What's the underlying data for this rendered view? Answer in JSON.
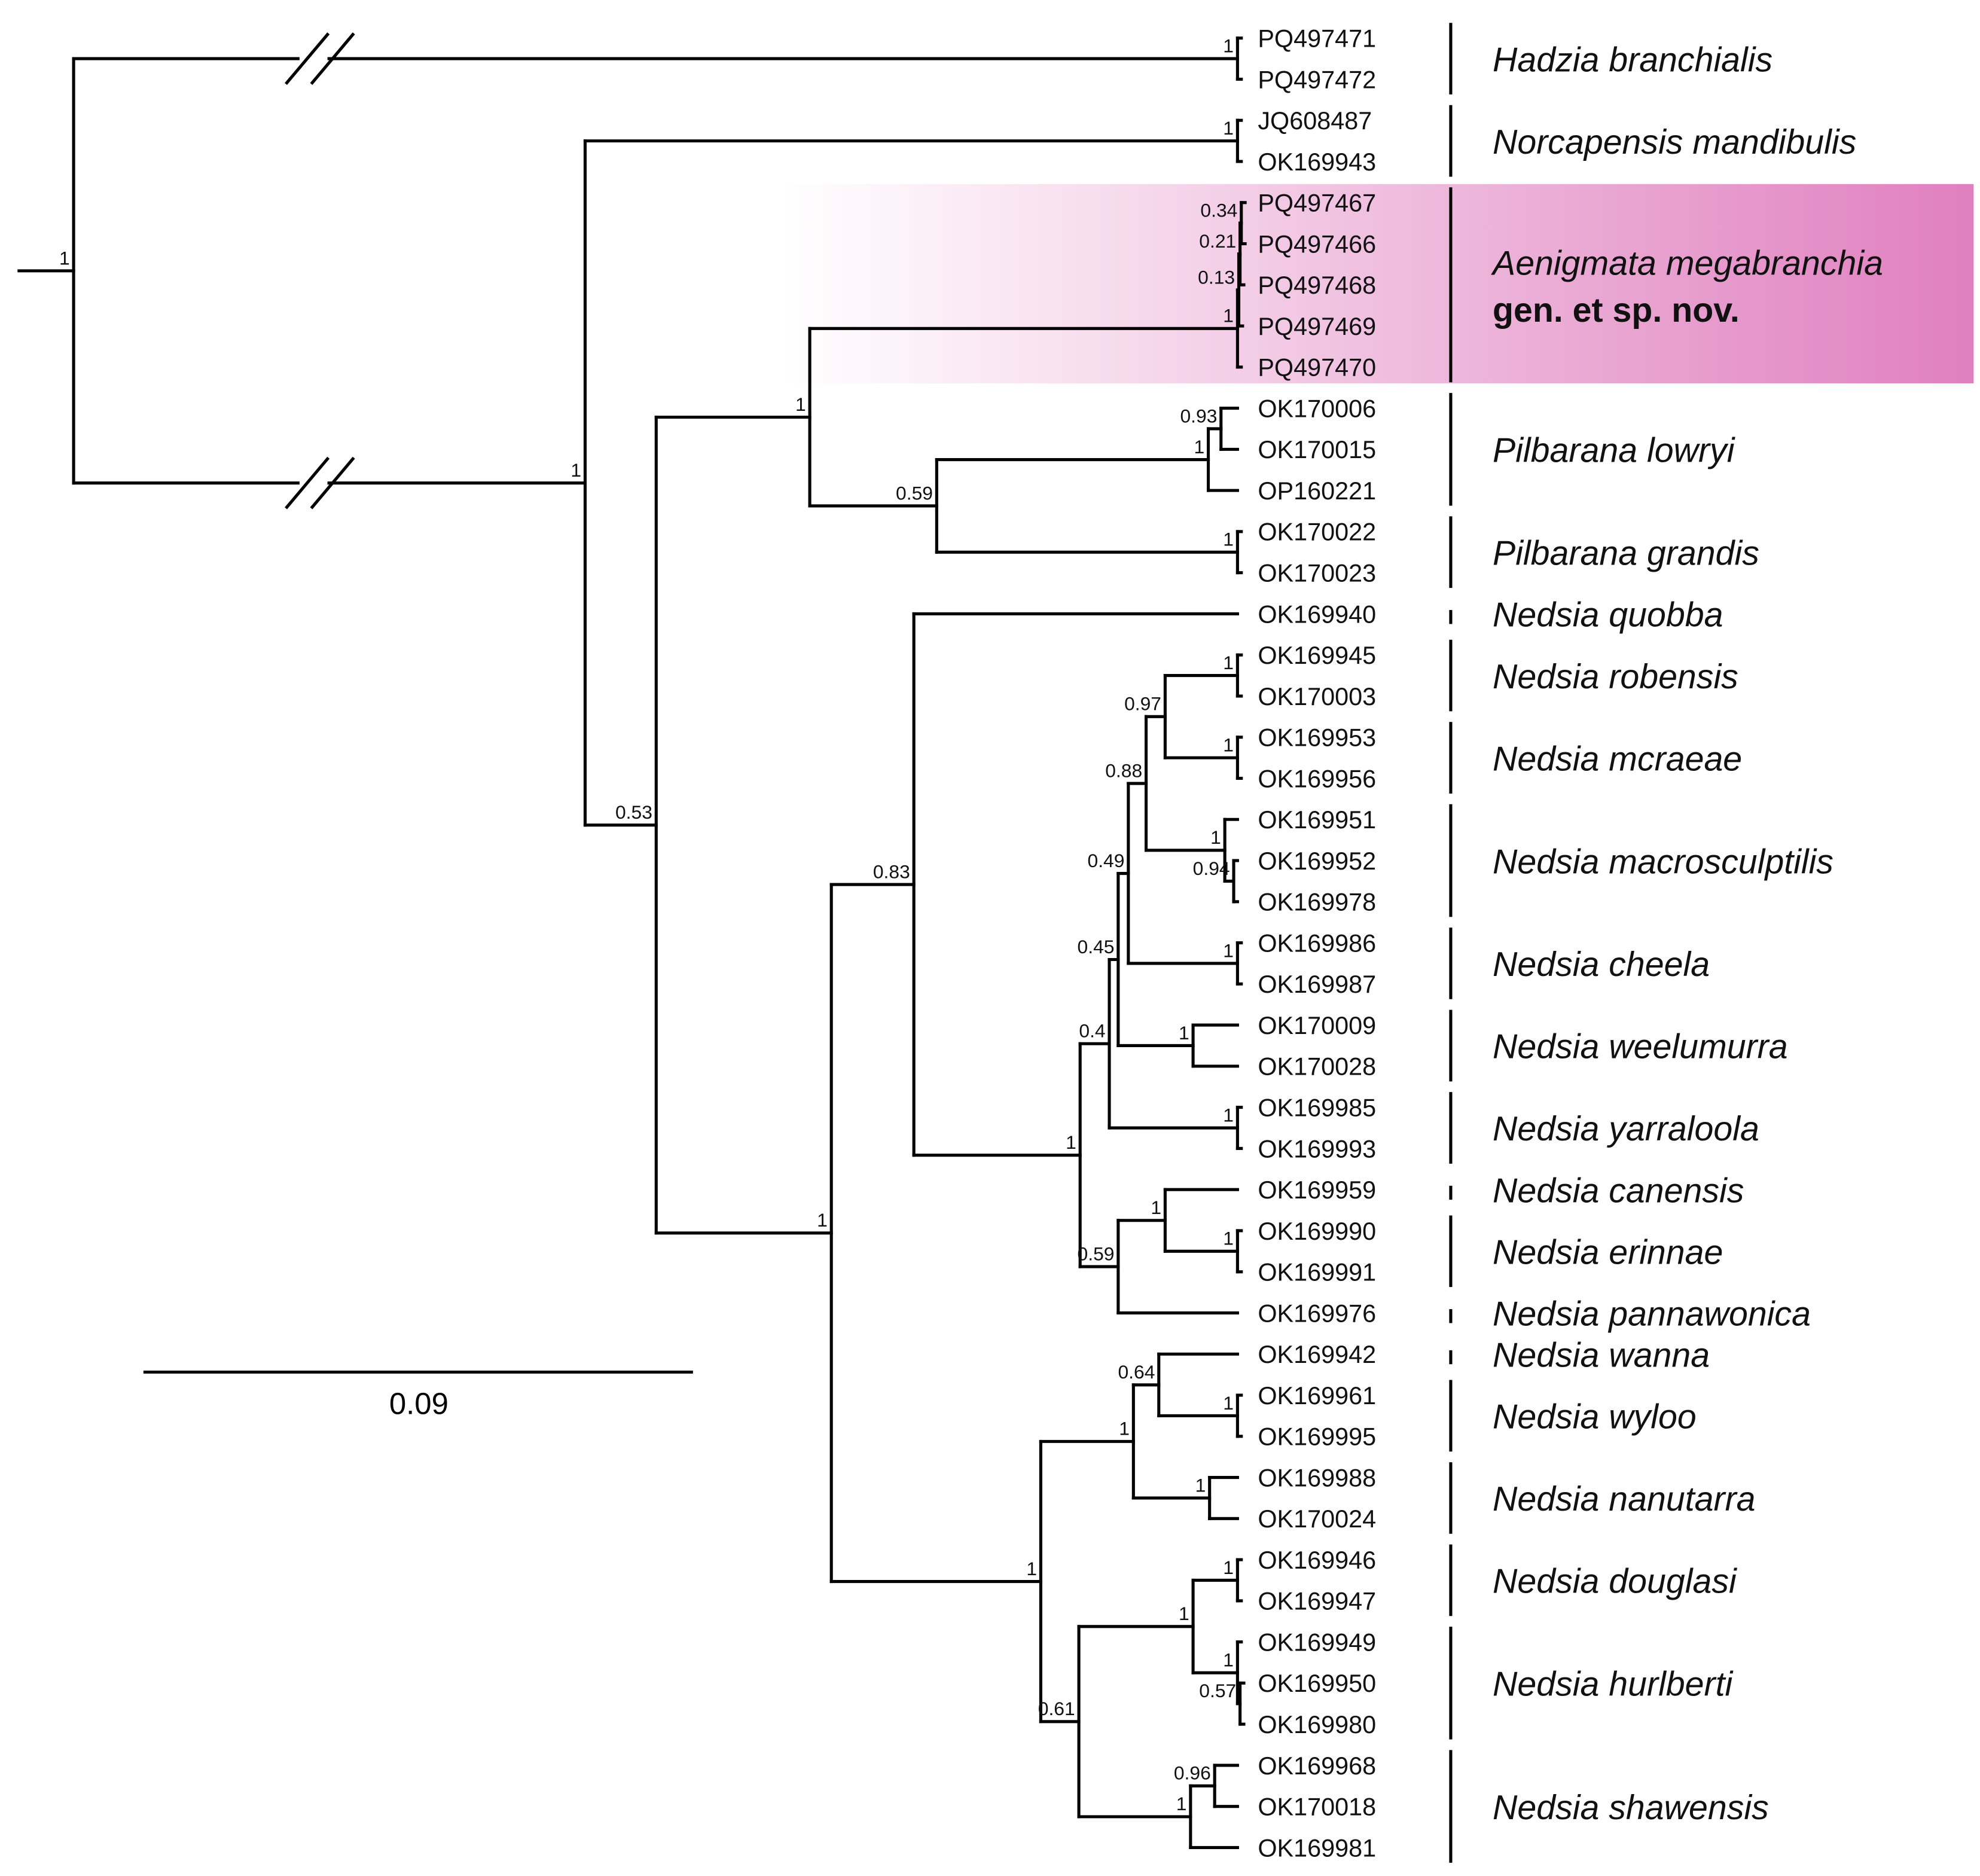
{
  "colors": {
    "highlight": "#e07fbf",
    "branch": "#000000"
  },
  "highlight_species": "Aenigmata megabranchia",
  "scale_bar": {
    "label": "0.09"
  },
  "tree": {
    "support": "1",
    "children": [
      {
        "support": "1",
        "children": [
          {
            "leaf": "PQ497471"
          },
          {
            "leaf": "PQ497472"
          }
        ]
      },
      {
        "support": "1",
        "children": [
          {
            "support": "1",
            "children": [
              {
                "leaf": "JQ608487"
              },
              {
                "leaf": "OK169943"
              }
            ]
          },
          {
            "support": "0.53",
            "children": [
              {
                "support": "1",
                "children": [
                  {
                    "support": "1",
                    "children": [
                      {
                        "support": "0.13",
                        "children": [
                          {
                            "support": "0.21",
                            "children": [
                              {
                                "support": "0.34",
                                "children": [
                                  {
                                    "leaf": "PQ497467"
                                  },
                                  {
                                    "leaf": "PQ497466"
                                  }
                                ]
                              },
                              {
                                "leaf": "PQ497468"
                              }
                            ]
                          },
                          {
                            "leaf": "PQ497469"
                          }
                        ]
                      },
                      {
                        "leaf": "PQ497470"
                      }
                    ]
                  },
                  {
                    "support": "0.59",
                    "children": [
                      {
                        "support": "1",
                        "children": [
                          {
                            "support": "0.93",
                            "children": [
                              {
                                "leaf": "OK170006"
                              },
                              {
                                "leaf": "OK170015"
                              }
                            ]
                          },
                          {
                            "leaf": "OP160221"
                          }
                        ]
                      },
                      {
                        "support": "1",
                        "children": [
                          {
                            "leaf": "OK170022"
                          },
                          {
                            "leaf": "OK170023"
                          }
                        ]
                      }
                    ]
                  }
                ]
              },
              {
                "support": "1",
                "children": [
                  {
                    "support": "0.83",
                    "children": [
                      {
                        "leaf": "OK169940"
                      },
                      {
                        "support": "1",
                        "children": [
                          {
                            "support": "0.4",
                            "children": [
                              {
                                "support": "0.45",
                                "children": [
                                  {
                                    "support": "0.49",
                                    "children": [
                                      {
                                        "support": "0.88",
                                        "children": [
                                          {
                                            "support": "0.97",
                                            "children": [
                                              {
                                                "support": "1",
                                                "children": [
                                                  {
                                                    "leaf": "OK169945"
                                                  },
                                                  {
                                                    "leaf": "OK170003"
                                                  }
                                                ]
                                              },
                                              {
                                                "support": "1",
                                                "children": [
                                                  {
                                                    "leaf": "OK169953"
                                                  },
                                                  {
                                                    "leaf": "OK169956"
                                                  }
                                                ]
                                              }
                                            ]
                                          },
                                          {
                                            "support": "1",
                                            "children": [
                                              {
                                                "leaf": "OK169951"
                                              },
                                              {
                                                "support": "0.94",
                                                "children": [
                                                  {
                                                    "leaf": "OK169952"
                                                  },
                                                  {
                                                    "leaf": "OK169978"
                                                  }
                                                ]
                                              }
                                            ]
                                          }
                                        ]
                                      },
                                      {
                                        "support": "1",
                                        "children": [
                                          {
                                            "leaf": "OK169986"
                                          },
                                          {
                                            "leaf": "OK169987"
                                          }
                                        ]
                                      }
                                    ]
                                  },
                                  {
                                    "support": "1",
                                    "children": [
                                      {
                                        "leaf": "OK170009"
                                      },
                                      {
                                        "leaf": "OK170028"
                                      }
                                    ]
                                  }
                                ]
                              },
                              {
                                "support": "1",
                                "children": [
                                  {
                                    "leaf": "OK169985"
                                  },
                                  {
                                    "leaf": "OK169993"
                                  }
                                ]
                              }
                            ]
                          },
                          {
                            "support": "0.59",
                            "children": [
                              {
                                "support": "1",
                                "children": [
                                  {
                                    "leaf": "OK169959"
                                  },
                                  {
                                    "support": "1",
                                    "children": [
                                      {
                                        "leaf": "OK169990"
                                      },
                                      {
                                        "leaf": "OK169991"
                                      }
                                    ]
                                  }
                                ]
                              },
                              {
                                "leaf": "OK169976"
                              }
                            ]
                          }
                        ]
                      }
                    ]
                  },
                  {
                    "support": "1",
                    "children": [
                      {
                        "support": "1",
                        "children": [
                          {
                            "support": "0.64",
                            "children": [
                              {
                                "leaf": "OK169942"
                              },
                              {
                                "support": "1",
                                "children": [
                                  {
                                    "leaf": "OK169961"
                                  },
                                  {
                                    "leaf": "OK169995"
                                  }
                                ]
                              }
                            ]
                          },
                          {
                            "support": "1",
                            "children": [
                              {
                                "leaf": "OK169988"
                              },
                              {
                                "leaf": "OK170024"
                              }
                            ]
                          }
                        ]
                      },
                      {
                        "support": "0.61",
                        "children": [
                          {
                            "support": "1",
                            "children": [
                              {
                                "support": "1",
                                "children": [
                                  {
                                    "leaf": "OK169946"
                                  },
                                  {
                                    "leaf": "OK169947"
                                  }
                                ]
                              },
                              {
                                "support": "1",
                                "children": [
                                  {
                                    "leaf": "OK169949"
                                  },
                                  {
                                    "support": "0.57",
                                    "children": [
                                      {
                                        "leaf": "OK169950"
                                      },
                                      {
                                        "leaf": "OK169980"
                                      }
                                    ]
                                  }
                                ]
                              }
                            ]
                          },
                          {
                            "support": "1",
                            "children": [
                              {
                                "support": "0.96",
                                "children": [
                                  {
                                    "leaf": "OK169968"
                                  },
                                  {
                                    "leaf": "OK170018"
                                  }
                                ]
                              },
                              {
                                "leaf": "OK169981"
                              }
                            ]
                          }
                        ]
                      }
                    ]
                  }
                ]
              }
            ]
          }
        ]
      }
    ]
  },
  "species": [
    {
      "name": "Hadzia branchialis",
      "from": "PQ497471",
      "to": "PQ497472"
    },
    {
      "name": "Norcapensis mandibulis",
      "from": "JQ608487",
      "to": "OK169943"
    },
    {
      "name": "Aenigmata megabranchia",
      "note": "gen. et sp. nov.",
      "from": "PQ497467",
      "to": "PQ497470"
    },
    {
      "name": "Pilbarana lowryi",
      "from": "OK170006",
      "to": "OP160221"
    },
    {
      "name": "Pilbarana grandis",
      "from": "OK170022",
      "to": "OK170023"
    },
    {
      "name": "Nedsia quobba",
      "from": "OK169940",
      "to": "OK169940"
    },
    {
      "name": "Nedsia robensis",
      "from": "OK169945",
      "to": "OK170003"
    },
    {
      "name": "Nedsia mcraeae",
      "from": "OK169953",
      "to": "OK169956"
    },
    {
      "name": "Nedsia macrosculptilis",
      "from": "OK169951",
      "to": "OK169978"
    },
    {
      "name": "Nedsia cheela",
      "from": "OK169986",
      "to": "OK169987"
    },
    {
      "name": "Nedsia weelumurra",
      "from": "OK170009",
      "to": "OK170028"
    },
    {
      "name": "Nedsia yarraloola",
      "from": "OK169985",
      "to": "OK169993"
    },
    {
      "name": "Nedsia canensis",
      "from": "OK169959",
      "to": "OK169959"
    },
    {
      "name": "Nedsia erinnae",
      "from": "OK169990",
      "to": "OK169991"
    },
    {
      "name": "Nedsia pannawonica",
      "from": "OK169976",
      "to": "OK169976"
    },
    {
      "name": "Nedsia wanna",
      "from": "OK169942",
      "to": "OK169942"
    },
    {
      "name": "Nedsia wyloo",
      "from": "OK169961",
      "to": "OK169995"
    },
    {
      "name": "Nedsia nanutarra",
      "from": "OK169988",
      "to": "OK170024"
    },
    {
      "name": "Nedsia douglasi",
      "from": "OK169946",
      "to": "OK169947"
    },
    {
      "name": "Nedsia hurlberti",
      "from": "OK169949",
      "to": "OK169980"
    },
    {
      "name": "Nedsia shawensis",
      "from": "OK169968",
      "to": "OK169981"
    }
  ]
}
